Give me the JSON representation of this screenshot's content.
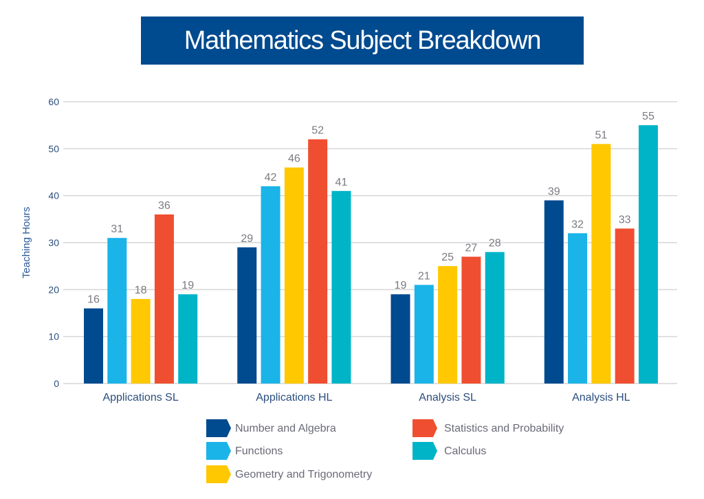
{
  "chart_data": {
    "type": "bar",
    "title": "Mathematics Subject Breakdown",
    "xlabel": "",
    "ylabel": "Teaching Hours",
    "ylim": [
      0,
      60
    ],
    "yticks": [
      0,
      10,
      20,
      30,
      40,
      50,
      60
    ],
    "grid": true,
    "legend_placement": "bottom",
    "categories": [
      "Applications SL",
      "Applications HL",
      "Analysis SL",
      "Analysis HL"
    ],
    "series": [
      {
        "name": "Number and Algebra",
        "color": "#004a8f",
        "values": [
          16,
          29,
          19,
          39
        ]
      },
      {
        "name": "Functions",
        "color": "#1ab4e8",
        "values": [
          31,
          42,
          21,
          32
        ]
      },
      {
        "name": "Geometry and Trigonometry",
        "color": "#ffc800",
        "values": [
          18,
          46,
          25,
          51
        ]
      },
      {
        "name": "Statistics and Probability",
        "color": "#f04e30",
        "values": [
          36,
          52,
          27,
          33
        ]
      },
      {
        "name": "Calculus",
        "color": "#00b4c8",
        "values": [
          19,
          41,
          28,
          55
        ]
      }
    ]
  }
}
